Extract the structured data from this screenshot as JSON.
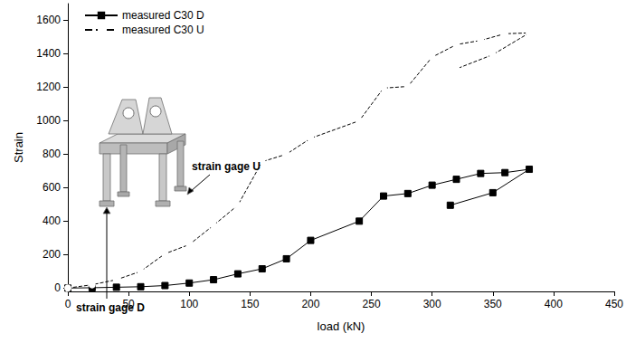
{
  "chart_data": {
    "type": "line",
    "x_label": "load (kN)",
    "y_label": "Strain",
    "xlim": [
      0,
      450
    ],
    "xticks": [
      0,
      50,
      100,
      150,
      200,
      250,
      300,
      350,
      400,
      450
    ],
    "ylim": [
      -20,
      1700
    ],
    "yticks": [
      0,
      200,
      400,
      600,
      800,
      1000,
      1200,
      1400,
      1600
    ],
    "grid": false,
    "legend": "upper left",
    "series": [
      {
        "name": "measured C30 D",
        "color": "#000000",
        "marker": "square",
        "line_style": "solid",
        "x": [
          0,
          20,
          40,
          60,
          80,
          100,
          120,
          140,
          160,
          180,
          200,
          240,
          260,
          280,
          300,
          320,
          340,
          360,
          380,
          350,
          315
        ],
        "values": [
          0,
          2,
          5,
          8,
          15,
          30,
          50,
          85,
          115,
          175,
          285,
          400,
          550,
          565,
          615,
          650,
          685,
          690,
          710,
          570,
          495
        ]
      },
      {
        "name": "measured C30 U",
        "color": "#000000",
        "marker": "open circle",
        "line_style": "dashed",
        "x": [
          0,
          20,
          40,
          60,
          80,
          100,
          120,
          140,
          160,
          180,
          200,
          240,
          260,
          280,
          300,
          320,
          340,
          360,
          380,
          350,
          320
        ],
        "values": [
          0,
          20,
          50,
          100,
          205,
          260,
          375,
          495,
          755,
          800,
          895,
          1000,
          1195,
          1205,
          1380,
          1455,
          1480,
          1520,
          1525,
          1395,
          1310
        ]
      }
    ],
    "annotations": [
      "strain gage U",
      "strain gage D"
    ]
  }
}
